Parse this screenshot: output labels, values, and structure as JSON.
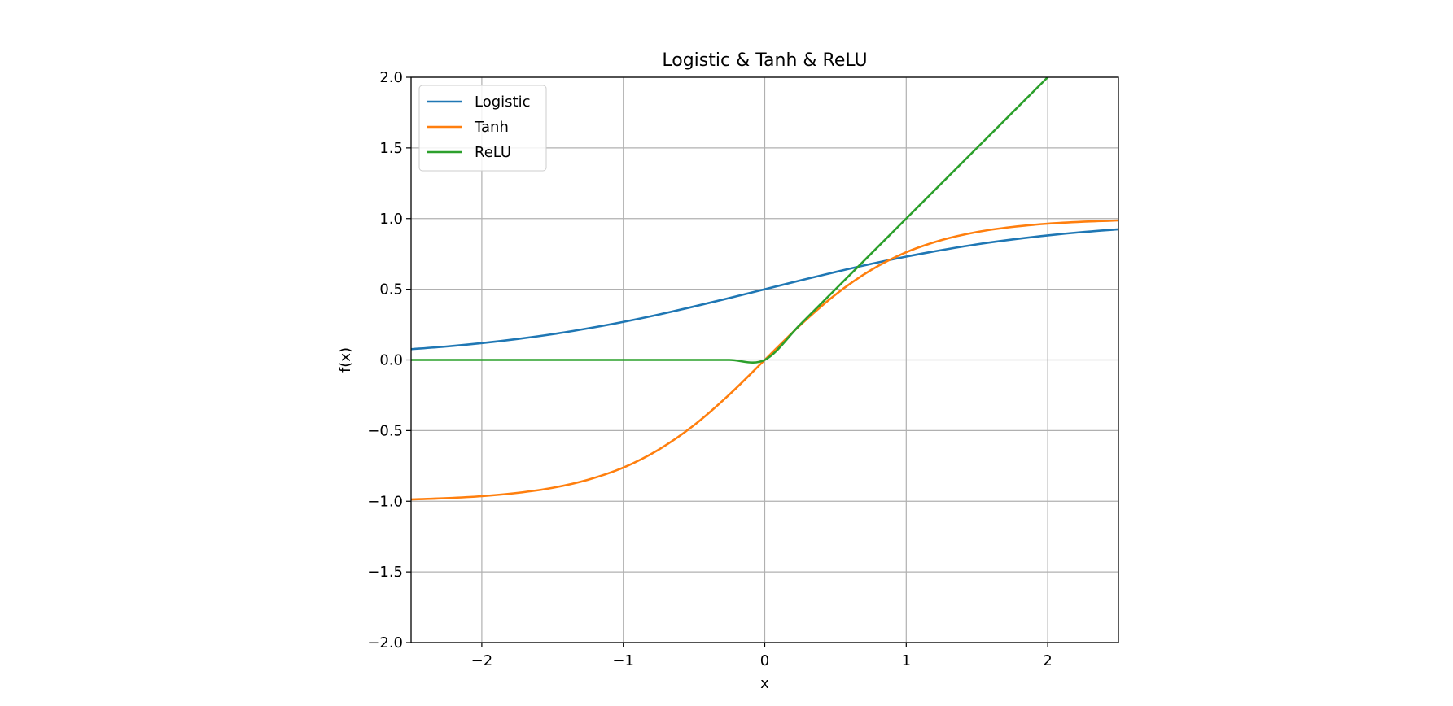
{
  "chart_data": {
    "type": "line",
    "title": "Logistic & Tanh & ReLU",
    "xlabel": "x",
    "ylabel": "f(x)",
    "xlim": [
      -2.5,
      2.5
    ],
    "ylim": [
      -2.0,
      2.0
    ],
    "x_ticks": [
      -2,
      -1,
      0,
      1,
      2
    ],
    "x_tick_labels": [
      "−2",
      "−1",
      "0",
      "1",
      "2"
    ],
    "y_ticks": [
      -2.0,
      -1.5,
      -1.0,
      -0.5,
      0.0,
      0.5,
      1.0,
      1.5,
      2.0
    ],
    "y_tick_labels": [
      "−2.0",
      "−1.5",
      "−1.0",
      "−0.5",
      "0.0",
      "0.5",
      "1.0",
      "1.5",
      "2.0"
    ],
    "grid": true,
    "legend_position": "top-left",
    "x": [
      -2.5,
      -2.25,
      -2.0,
      -1.75,
      -1.5,
      -1.25,
      -1.0,
      -0.75,
      -0.5,
      -0.25,
      0.0,
      0.25,
      0.5,
      0.75,
      1.0,
      1.25,
      1.5,
      1.75,
      2.0,
      2.25,
      2.5
    ],
    "series": [
      {
        "name": "Logistic",
        "color": "#1f77b4",
        "values": [
          0.076,
          0.095,
          0.119,
          0.148,
          0.182,
          0.223,
          0.269,
          0.321,
          0.378,
          0.438,
          0.5,
          0.562,
          0.622,
          0.679,
          0.731,
          0.777,
          0.818,
          0.852,
          0.881,
          0.905,
          0.924
        ]
      },
      {
        "name": "Tanh",
        "color": "#ff7f0e",
        "values": [
          -0.987,
          -0.978,
          -0.964,
          -0.941,
          -0.905,
          -0.848,
          -0.762,
          -0.635,
          -0.462,
          -0.245,
          0.0,
          0.245,
          0.462,
          0.635,
          0.762,
          0.848,
          0.905,
          0.941,
          0.964,
          0.978,
          0.987
        ]
      },
      {
        "name": "ReLU",
        "color": "#2ca02c",
        "values": [
          0.0,
          0.0,
          0.0,
          0.0,
          0.0,
          0.0,
          0.0,
          0.0,
          0.0,
          0.0,
          0.0,
          0.25,
          0.5,
          0.75,
          1.0,
          1.25,
          1.5,
          1.75,
          2.0,
          2.25,
          2.5
        ]
      }
    ]
  }
}
